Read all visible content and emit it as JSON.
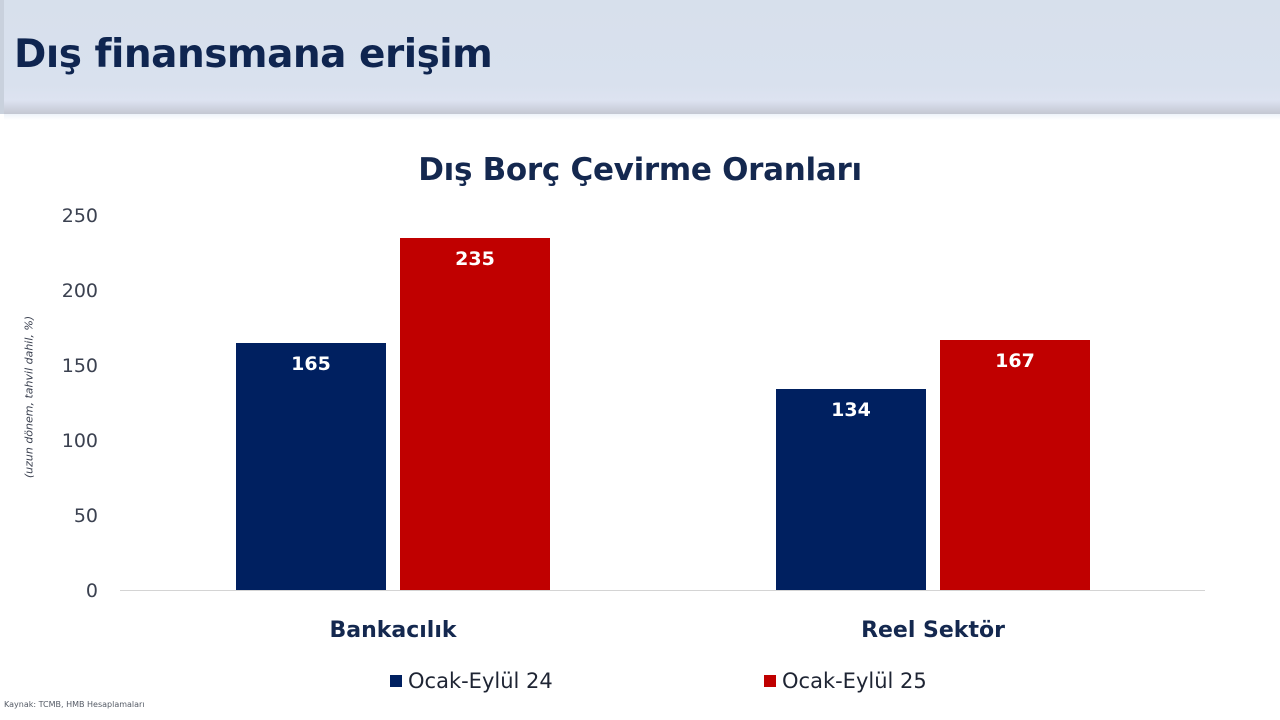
{
  "header": {
    "title": "Dış finansmana erişim"
  },
  "chart_data": {
    "type": "bar",
    "title": "Dış Borç Çevirme Oranları",
    "xlabel": "",
    "ylabel": "(uzun dönem, tahvil dahil, %)",
    "ylim": [
      0,
      250
    ],
    "yticks": [
      "0",
      "50",
      "100",
      "150",
      "200",
      "250"
    ],
    "grid": false,
    "legend_position": "bottom",
    "categories": [
      "Bankacılık",
      "Reel Sektör"
    ],
    "series": [
      {
        "name": "Ocak-Eylül 24",
        "color": "#002060",
        "values": [
          165,
          134
        ],
        "labels": [
          "165",
          "134"
        ]
      },
      {
        "name": "Ocak-Eylül 25",
        "color": "#C00000",
        "values": [
          235,
          167
        ],
        "labels": [
          "235",
          "167"
        ]
      }
    ]
  },
  "source": "Kaynak: TCMB, HMB Hesaplamaları"
}
